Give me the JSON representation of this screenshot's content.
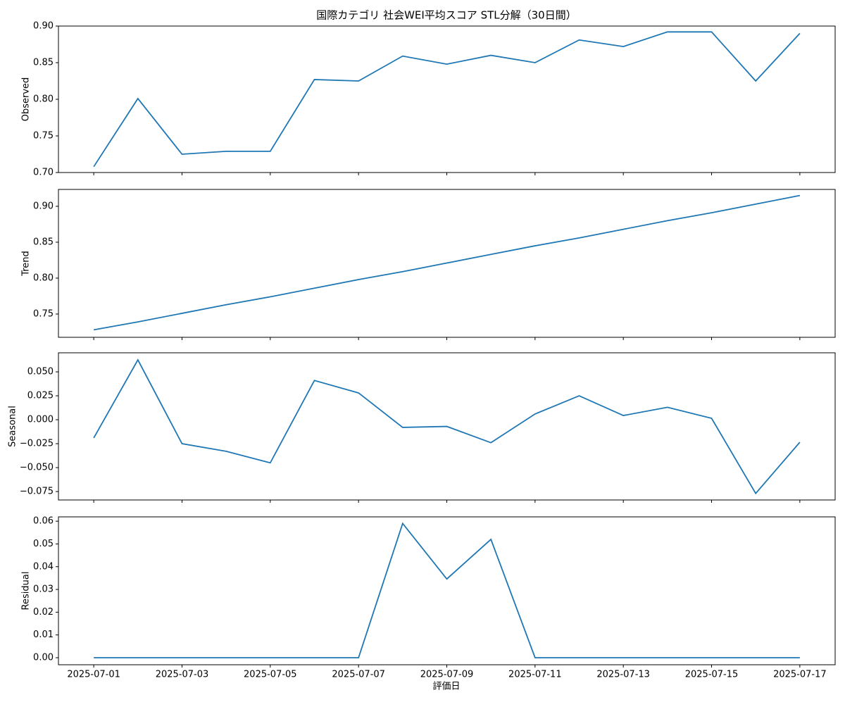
{
  "chart_data": {
    "type": "line",
    "title": "国際カテゴリ 社会WEI平均スコア STL分解（30日間）",
    "xlabel": "評価日",
    "x": [
      "2025-07-01",
      "2025-07-02",
      "2025-07-03",
      "2025-07-04",
      "2025-07-05",
      "2025-07-06",
      "2025-07-07",
      "2025-07-08",
      "2025-07-09",
      "2025-07-10",
      "2025-07-11",
      "2025-07-12",
      "2025-07-13",
      "2025-07-14",
      "2025-07-15",
      "2025-07-16",
      "2025-07-17"
    ],
    "xlim": [
      "2025-06-30T04:48",
      "2025-07-17T19:12"
    ],
    "xticks": [
      "2025-07-01",
      "2025-07-03",
      "2025-07-05",
      "2025-07-07",
      "2025-07-09",
      "2025-07-11",
      "2025-07-13",
      "2025-07-15",
      "2025-07-17"
    ],
    "panels": [
      {
        "ylabel": "Observed",
        "color": "#1f77b4",
        "values": [
          0.708,
          0.801,
          0.725,
          0.729,
          0.729,
          0.827,
          0.825,
          0.859,
          0.848,
          0.86,
          0.85,
          0.881,
          0.872,
          0.892,
          0.892,
          0.825,
          0.89
        ],
        "ylim": [
          0.7,
          0.9
        ],
        "yticks": [
          {
            "value": 0.7,
            "label": "0.70"
          },
          0.75,
          {
            "value": 0.8,
            "label": "0.80"
          },
          0.85,
          {
            "value": 0.9,
            "label": "0.90"
          }
        ]
      },
      {
        "ylabel": "Trend",
        "color": "#1f77b4",
        "values": [
          0.728,
          0.739,
          0.751,
          0.763,
          0.774,
          0.786,
          0.798,
          0.809,
          0.821,
          0.833,
          0.845,
          0.856,
          0.868,
          0.88,
          0.891,
          0.903,
          0.915
        ],
        "ylim": [
          0.7176,
          0.9235
        ],
        "yticks": [
          0.75,
          {
            "value": 0.8,
            "label": "0.80"
          },
          0.85,
          {
            "value": 0.9,
            "label": "0.90"
          }
        ]
      },
      {
        "ylabel": "Seasonal",
        "color": "#1f77b4",
        "values": [
          -0.019,
          0.0625,
          -0.025,
          -0.033,
          -0.045,
          0.041,
          0.028,
          -0.008,
          -0.007,
          -0.024,
          0.006,
          0.025,
          0.0044,
          0.013,
          0.0015,
          -0.077,
          -0.0235
        ],
        "ylim": [
          -0.0838,
          0.0699
        ],
        "yticks": [
          {
            "value": -0.075,
            "label": "−0.075"
          },
          {
            "value": -0.05,
            "label": "−0.050"
          },
          {
            "value": -0.025,
            "label": "−0.025"
          },
          {
            "value": 0,
            "label": "0.000"
          },
          0.025,
          {
            "value": 0.05,
            "label": "0.050"
          }
        ]
      },
      {
        "ylabel": "Residual",
        "color": "#1f77b4",
        "values": [
          0,
          0,
          0,
          0,
          0,
          0,
          0,
          0.059,
          0.0346,
          0.052,
          0,
          0,
          0,
          0,
          0,
          0,
          0
        ],
        "ylim": [
          -0.0031,
          0.0619
        ],
        "yticks": [
          {
            "value": 0,
            "label": "0.00"
          },
          0.01,
          0.02,
          0.03,
          0.04,
          0.05,
          0.06
        ]
      }
    ]
  }
}
